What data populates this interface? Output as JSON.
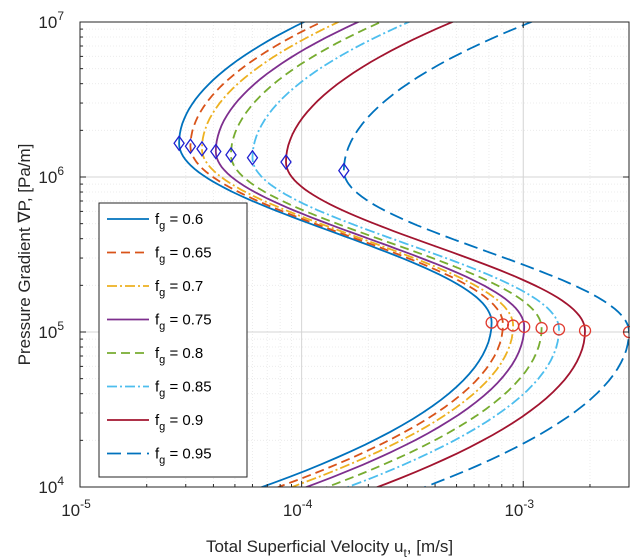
{
  "chart_data": {
    "type": "line",
    "title": "",
    "xlabel": "Total Superficial Velocity u",
    "xlabel_sub": "t",
    "xlabel_tail": ", [m/s]",
    "ylabel": "Pressure Gradient ∇P, [Pa/m]",
    "xscale": "log",
    "yscale": "log",
    "xlim": [
      1e-05,
      0.003
    ],
    "ylim": [
      10000,
      10000000
    ],
    "grid": true,
    "legend_position": "left-middle",
    "x_tick_labels": [
      {
        "base": "10",
        "exp": "-5",
        "value": 1e-05
      },
      {
        "base": "10",
        "exp": "-4",
        "value": 0.0001
      },
      {
        "base": "10",
        "exp": "-3",
        "value": 0.001
      }
    ],
    "y_tick_labels": [
      {
        "base": "10",
        "exp": "4",
        "value": 10000
      },
      {
        "base": "10",
        "exp": "5",
        "value": 100000
      },
      {
        "base": "10",
        "exp": "6",
        "value": 1000000
      },
      {
        "base": "10",
        "exp": "7",
        "value": 10000000
      }
    ],
    "series": [
      {
        "name": "f_g = 0.6",
        "label_main": "f",
        "label_sub": "g",
        "label_tail": " = 0.6",
        "color": "#0072BD",
        "dash": "",
        "left_max_u": 2.8e-05,
        "left_max_p": 1650000,
        "right_max_u": 0.00072,
        "right_max_p": 115000
      },
      {
        "name": "f_g = 0.65",
        "label_main": "f",
        "label_sub": "g",
        "label_tail": " = 0.65",
        "color": "#D95319",
        "dash": "9,5",
        "left_max_u": 3.15e-05,
        "left_max_p": 1580000,
        "right_max_u": 0.00081,
        "right_max_p": 112000
      },
      {
        "name": "f_g = 0.7",
        "label_main": "f",
        "label_sub": "g",
        "label_tail": " = 0.7",
        "color": "#EDB120",
        "dash": "10,3,2,3",
        "left_max_u": 3.55e-05,
        "left_max_p": 1520000,
        "right_max_u": 0.0009,
        "right_max_p": 110000
      },
      {
        "name": "f_g = 0.75",
        "label_main": "f",
        "label_sub": "g",
        "label_tail": " = 0.75",
        "color": "#7E2F8E",
        "dash": "",
        "left_max_u": 4.1e-05,
        "left_max_p": 1460000,
        "right_max_u": 0.00101,
        "right_max_p": 108000
      },
      {
        "name": "f_g = 0.8",
        "label_main": "f",
        "label_sub": "g",
        "label_tail": " = 0.8",
        "color": "#77AC30",
        "dash": "9,5",
        "left_max_u": 4.8e-05,
        "left_max_p": 1390000,
        "right_max_u": 0.00121,
        "right_max_p": 106000
      },
      {
        "name": "f_g = 0.85",
        "label_main": "f",
        "label_sub": "g",
        "label_tail": " = 0.85",
        "color": "#4DBEEE",
        "dash": "10,3,2,3",
        "left_max_u": 6e-05,
        "left_max_p": 1330000,
        "right_max_u": 0.00145,
        "right_max_p": 104000
      },
      {
        "name": "f_g = 0.9",
        "label_main": "f",
        "label_sub": "g",
        "label_tail": " = 0.9",
        "color": "#A2142F",
        "dash": "",
        "left_max_u": 8.5e-05,
        "left_max_p": 1250000,
        "right_max_u": 0.0019,
        "right_max_p": 102000
      },
      {
        "name": "f_g = 0.95",
        "label_main": "f",
        "label_sub": "g",
        "label_tail": " = 0.95",
        "color": "#0072BD",
        "dash": "14,6",
        "left_max_u": 0.000155,
        "left_max_p": 1100000,
        "right_max_u": 0.003,
        "right_max_p": 100000
      }
    ],
    "left_markers": {
      "shape": "diamond",
      "color": "#2020D0"
    },
    "right_markers": {
      "shape": "circle",
      "color": "#E03C31"
    }
  }
}
